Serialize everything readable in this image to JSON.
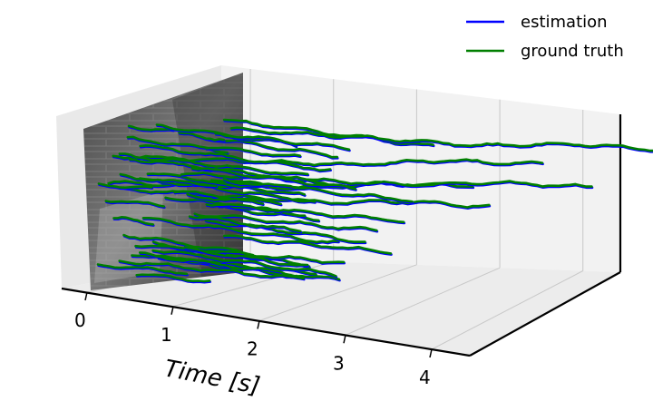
{
  "chart_data": {
    "type": "line",
    "projection": "3d",
    "xlabel": "Time [s]",
    "x_ticks": [
      "0",
      "1",
      "2",
      "3",
      "4"
    ],
    "xlim": [
      0,
      4
    ],
    "grid": true,
    "legend_position": "top-right",
    "background_image": "grayscale-event-camera-frame",
    "series": [
      {
        "name": "estimation",
        "color": "#0000ff"
      },
      {
        "name": "ground truth",
        "color": "#007f00"
      }
    ],
    "track_count": 48,
    "track_duration_range_s": [
      0.4,
      4.2
    ]
  }
}
